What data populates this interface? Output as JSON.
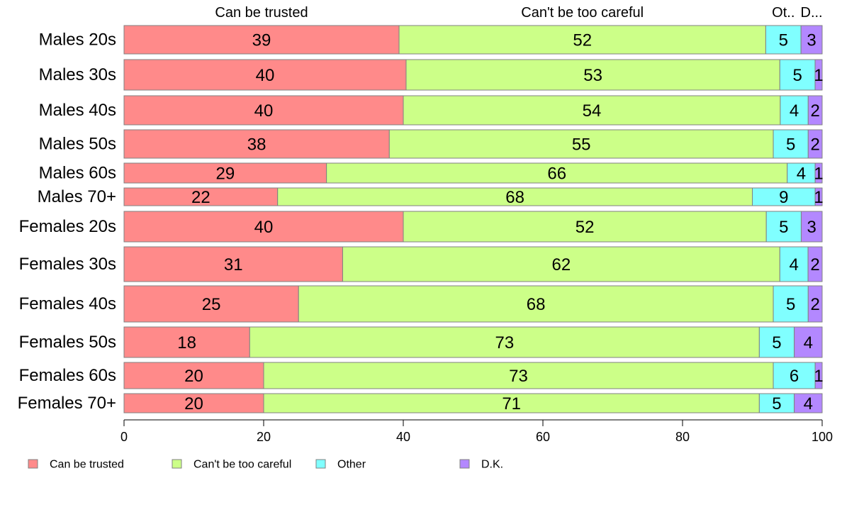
{
  "chart_data": {
    "type": "bar",
    "orientation": "horizontal",
    "stacked": true,
    "variable_width": true,
    "categories": [
      "Males 20s",
      "Males 30s",
      "Males 40s",
      "Males 50s",
      "Males 60s",
      "Males 70+",
      "Females 20s",
      "Females 30s",
      "Females 40s",
      "Females 50s",
      "Females 60s",
      "Females 70+"
    ],
    "series": [
      {
        "name": "Can be trusted",
        "color": "#ff8a8a",
        "values": [
          39,
          40,
          40,
          38,
          29,
          22,
          40,
          31,
          25,
          18,
          20,
          20
        ]
      },
      {
        "name": "Can't be too careful",
        "color": "#ccff88",
        "values": [
          52,
          53,
          54,
          55,
          66,
          68,
          52,
          62,
          68,
          73,
          73,
          71
        ]
      },
      {
        "name": "Other",
        "color": "#80ffff",
        "values": [
          5,
          5,
          4,
          5,
          4,
          9,
          5,
          4,
          5,
          5,
          6,
          5
        ]
      },
      {
        "name": "D.K.",
        "color": "#b388ff",
        "values": [
          3,
          1,
          2,
          2,
          1,
          1,
          3,
          2,
          2,
          4,
          1,
          4
        ]
      }
    ],
    "top_labels": [
      "Can be trusted",
      "Can't be too careful",
      "Ot..",
      "D..."
    ],
    "xlim": [
      0,
      100
    ],
    "xticks": [
      0,
      20,
      40,
      60,
      80,
      100
    ],
    "legend": {
      "position": "bottom",
      "items": [
        "Can be trusted",
        "Can't be too careful",
        "Other",
        "D.K."
      ]
    },
    "grid": false
  }
}
